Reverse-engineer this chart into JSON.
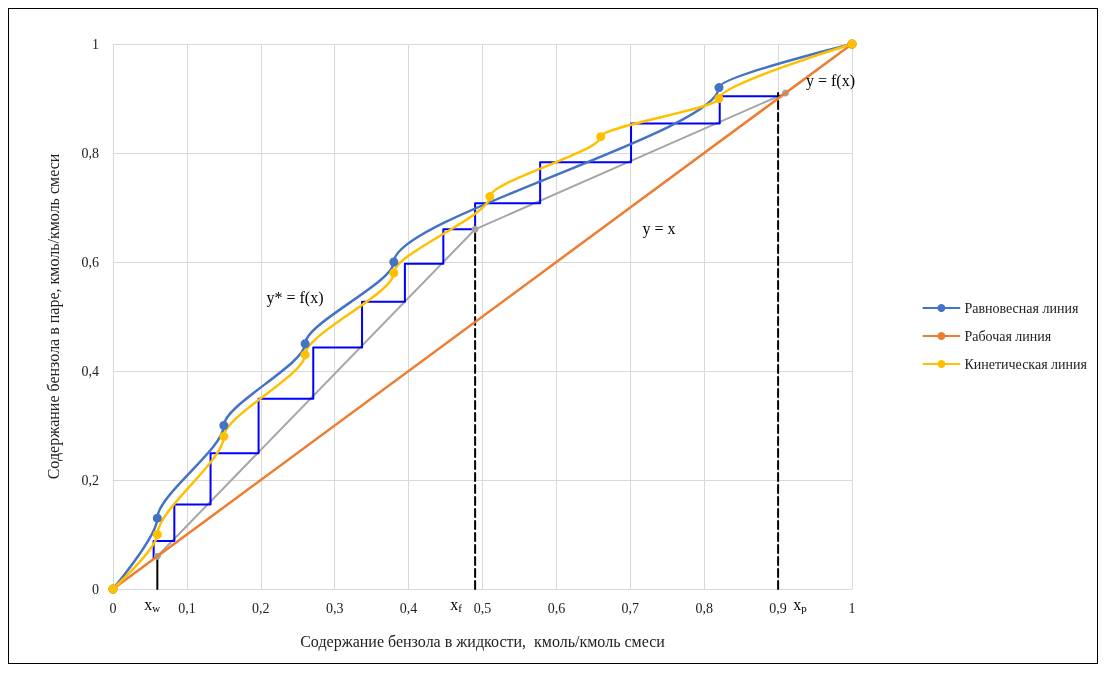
{
  "chart_data": {
    "type": "line",
    "xlabel": "Содержание бензола в жидкости,  кмоль/кмоль смеси",
    "ylabel": "Содержание бензола в паре, кмоль/кмоль смеси",
    "xlim": [
      0,
      1
    ],
    "ylim": [
      0,
      1
    ],
    "xticks": [
      0,
      {
        "value": 0.1,
        "label": "0,1"
      },
      {
        "value": 0.2,
        "label": "0,2"
      },
      {
        "value": 0.3,
        "label": "0,3"
      },
      {
        "value": 0.4,
        "label": "0,4"
      },
      {
        "value": 0.5,
        "label": "0,5"
      },
      {
        "value": 0.6,
        "label": "0,6"
      },
      {
        "value": 0.7,
        "label": "0,7"
      },
      {
        "value": 0.8,
        "label": "0,8"
      },
      {
        "value": 0.9,
        "label": "0,9"
      },
      1
    ],
    "yticks": [
      0,
      {
        "value": 0.2,
        "label": "0,2"
      },
      {
        "value": 0.4,
        "label": "0,4"
      },
      {
        "value": 0.6,
        "label": "0,6"
      },
      {
        "value": 0.8,
        "label": "0,8"
      },
      1
    ],
    "grid": true,
    "legend": "right",
    "series": [
      {
        "name": "Равновесная линия",
        "color": "#4472c4",
        "marker": "circle",
        "x": [
          0,
          0.06,
          0.15,
          0.26,
          0.38,
          0.82,
          1
        ],
        "values": [
          0,
          0.13,
          0.3,
          0.45,
          0.6,
          0.92,
          1
        ]
      },
      {
        "name": "Рабочая линия",
        "color": "#ed7d31",
        "marker": "circle",
        "x": [
          0,
          1
        ],
        "values": [
          0,
          1
        ]
      },
      {
        "name": "Кинетическая линия",
        "color": "#ffc000",
        "marker": "circle",
        "x": [
          0,
          0.06,
          0.15,
          0.26,
          0.38,
          0.51,
          0.66,
          0.82,
          1
        ],
        "values": [
          0,
          0.1,
          0.28,
          0.43,
          0.58,
          0.72,
          0.83,
          0.9,
          1
        ]
      },
      {
        "color": "#a5a5a5",
        "marker": "circle",
        "x": [
          0.06,
          0.49,
          0.91
        ],
        "values": [
          0.06,
          0.66,
          0.91
        ]
      },
      {
        "color": "#0000ff",
        "marker": "none",
        "x": [
          0.055,
          0.055,
          0.083,
          0.083,
          0.132,
          0.132,
          0.197,
          0.197,
          0.271,
          0.271,
          0.337,
          0.337,
          0.395,
          0.395,
          0.447,
          0.447,
          0.49,
          0.49,
          0.578,
          0.578,
          0.701,
          0.701,
          0.821,
          0.821,
          0.903
        ],
        "values": [
          0.056,
          0.088,
          0.088,
          0.155,
          0.155,
          0.249,
          0.249,
          0.349,
          0.349,
          0.443,
          0.443,
          0.527,
          0.527,
          0.597,
          0.597,
          0.66,
          0.66,
          0.708,
          0.708,
          0.783,
          0.783,
          0.854,
          0.854,
          0.904,
          0.904
        ]
      },
      {
        "color": "#000000",
        "marker": "none",
        "line_style": "solid",
        "x": [
          0.06,
          0.06
        ],
        "values": [
          0,
          0.06
        ]
      },
      {
        "color": "#000000",
        "marker": "none",
        "line_style": "dashed",
        "x": [
          0.49,
          0.49
        ],
        "values": [
          0,
          0.66
        ]
      },
      {
        "color": "#000000",
        "marker": "none",
        "line_style": "dashed",
        "x": [
          0.9,
          0.9
        ],
        "values": [
          0,
          0.91
        ]
      }
    ],
    "annotations": [
      "y* = f(x)",
      {
        "text": "y = f(x)",
        "x": 0.91,
        "y": 0.91
      },
      "y = x",
      {
        "text": "x$_{w}$",
        "x": 0.06,
        "y": 0
      },
      {
        "text": "x$_{f}$",
        "x": 0.49,
        "y": 0
      },
      {
        "text": "x$_{p}$",
        "x": 0.9,
        "y": 0
      }
    ]
  }
}
